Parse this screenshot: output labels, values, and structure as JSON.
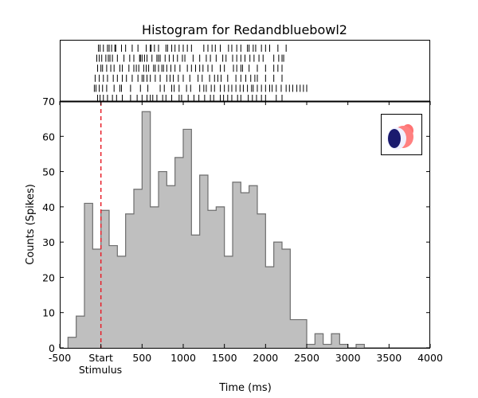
{
  "chart_data": {
    "type": "bar",
    "title": "Histogram for Redandbluebowl2",
    "xlabel": "Time (ms)",
    "ylabel": "Counts (Spikes)",
    "xlim": [
      -500,
      4000
    ],
    "ylim": [
      0,
      70
    ],
    "bin_width": 100,
    "bins_start": [
      -400,
      -300,
      -200,
      -100,
      0,
      100,
      200,
      300,
      400,
      500,
      600,
      700,
      800,
      900,
      1000,
      1100,
      1200,
      1300,
      1400,
      1500,
      1600,
      1700,
      1800,
      1900,
      2000,
      2100,
      2200,
      2300,
      2400,
      2500,
      2600,
      2700,
      2800,
      2900,
      3000,
      3100,
      3200
    ],
    "values": [
      3,
      9,
      41,
      28,
      39,
      29,
      26,
      38,
      45,
      67,
      40,
      50,
      46,
      54,
      62,
      32,
      49,
      39,
      40,
      26,
      47,
      44,
      46,
      38,
      23,
      30,
      28,
      8,
      8,
      1,
      4,
      1,
      4,
      1,
      0,
      1,
      0
    ],
    "xticks": [
      -500,
      0,
      500,
      1000,
      1500,
      2000,
      2500,
      3000,
      3500,
      4000
    ],
    "xtick_labels": [
      "-500",
      "Start",
      "500",
      "1000",
      "1500",
      "2000",
      "2500",
      "3000",
      "3500",
      "4000"
    ],
    "stimulus_label": "Stimulus",
    "yticks": [
      0,
      10,
      20,
      30,
      40,
      50,
      60,
      70
    ],
    "ytick_labels": [
      "0",
      "10",
      "20",
      "30",
      "40",
      "50",
      "60"
    ],
    "top_ytick_label": "70",
    "stimulus_marker": {
      "x": 0,
      "style": "dashed",
      "color": "#e8202a"
    },
    "raster": {
      "trials": [
        [
          -30,
          -10,
          30,
          80,
          100,
          130,
          170,
          180,
          250,
          300,
          380,
          450,
          550,
          600,
          610,
          650,
          700,
          790,
          810,
          860,
          900,
          950,
          1000,
          1050,
          1100,
          1250,
          1300,
          1350,
          1390,
          1450,
          1550,
          1590,
          1650,
          1700,
          1780,
          1800,
          1850,
          1880,
          1950,
          2000,
          2050,
          2150,
          2250
        ],
        [
          -50,
          -20,
          10,
          60,
          90,
          110,
          140,
          200,
          280,
          350,
          400,
          470,
          480,
          500,
          530,
          560,
          620,
          680,
          700,
          720,
          780,
          830,
          880,
          930,
          990,
          1020,
          1120,
          1200,
          1280,
          1330,
          1400,
          1480,
          1520,
          1600,
          1650,
          1700,
          1750,
          1810,
          1860,
          1920,
          1970,
          2100,
          2160,
          2200,
          2220
        ],
        [
          -40,
          0,
          20,
          70,
          120,
          160,
          230,
          260,
          340,
          400,
          430,
          460,
          520,
          550,
          580,
          640,
          660,
          700,
          740,
          760,
          800,
          850,
          900,
          960,
          1050,
          1100,
          1150,
          1200,
          1240,
          1300,
          1350,
          1450,
          1500,
          1610,
          1650,
          1700,
          1720,
          1800,
          1900,
          2000,
          2100,
          2150,
          2200
        ],
        [
          -70,
          -20,
          30,
          80,
          150,
          200,
          260,
          310,
          380,
          450,
          500,
          520,
          560,
          600,
          660,
          720,
          800,
          840,
          880,
          940,
          1000,
          1080,
          1180,
          1230,
          1320,
          1380,
          1420,
          1460,
          1540,
          1640,
          1700,
          1760,
          1820,
          1870,
          1900,
          2000,
          2100,
          2200
        ],
        [
          -80,
          -60,
          -20,
          20,
          70,
          160,
          230,
          250,
          360,
          480,
          570,
          720,
          770,
          860,
          890,
          950,
          1040,
          1090,
          1200,
          1250,
          1280,
          1340,
          1380,
          1450,
          1500,
          1550,
          1590,
          1640,
          1690,
          1730,
          1780,
          1830,
          1850,
          1900,
          1950,
          2000,
          2050,
          2080,
          2130,
          2190,
          2250,
          2290,
          2330,
          2380,
          2420,
          2460,
          2500
        ],
        [
          -40,
          -10,
          30,
          80,
          140,
          190,
          260,
          360,
          440,
          500,
          560,
          600,
          630,
          680,
          750,
          790,
          860,
          950,
          980,
          1060,
          1130,
          1190,
          1260,
          1330,
          1370,
          1450,
          1490,
          1540,
          1590,
          1660,
          1700,
          1790,
          1840,
          1890,
          1950,
          2000,
          2130,
          2200
        ]
      ]
    },
    "legend_image": {
      "description_key": "stimulus-thumbnail",
      "colors": [
        "#ff6a6a",
        "#f2f2ff",
        "#1a1a6e"
      ]
    },
    "colors": {
      "bar_fill": "#bfbfbf",
      "bar_edge": "#6e6e6e",
      "axis": "#000000"
    }
  }
}
